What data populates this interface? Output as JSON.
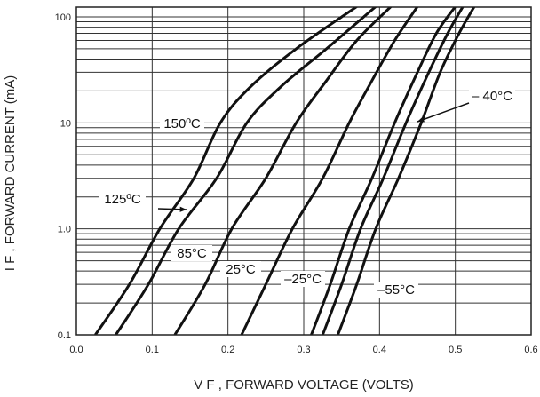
{
  "chart_data": {
    "type": "line",
    "title": "",
    "xlabel": "V F , FORWARD VOLTAGE (VOLTS)",
    "ylabel": "I F , FORWARD CURRENT (mA)",
    "xlim": [
      0.0,
      0.6
    ],
    "ylim": [
      0.1,
      120
    ],
    "yscale": "log",
    "grid": true,
    "x_ticks": [
      0.0,
      0.1,
      0.2,
      0.3,
      0.4,
      0.5,
      0.6
    ],
    "x_tick_labels": [
      "0.0",
      "0.1",
      "0.2",
      "0.3",
      "0.4",
      "0.5",
      "0.6"
    ],
    "y_ticks": [
      0.1,
      1.0,
      10,
      100
    ],
    "y_tick_labels": [
      "0.1",
      "1.0",
      "10",
      "100"
    ],
    "series": [
      {
        "name": "150ºC",
        "points": [
          [
            0.025,
            0.1
          ],
          [
            0.07,
            0.3
          ],
          [
            0.11,
            1.0
          ],
          [
            0.155,
            3.0
          ],
          [
            0.19,
            10
          ],
          [
            0.23,
            22
          ],
          [
            0.29,
            50
          ],
          [
            0.37,
            125
          ]
        ]
      },
      {
        "name": "125ºC",
        "points": [
          [
            0.052,
            0.1
          ],
          [
            0.095,
            0.3
          ],
          [
            0.135,
            1.0
          ],
          [
            0.185,
            3.0
          ],
          [
            0.225,
            10
          ],
          [
            0.27,
            22
          ],
          [
            0.33,
            50
          ],
          [
            0.395,
            125
          ]
        ]
      },
      {
        "name": "85°C",
        "points": [
          [
            0.13,
            0.1
          ],
          [
            0.17,
            0.3
          ],
          [
            0.205,
            1.0
          ],
          [
            0.25,
            3.0
          ],
          [
            0.29,
            10
          ],
          [
            0.33,
            25
          ],
          [
            0.37,
            60
          ],
          [
            0.415,
            125
          ]
        ]
      },
      {
        "name": "25°C",
        "points": [
          [
            0.218,
            0.1
          ],
          [
            0.25,
            0.3
          ],
          [
            0.285,
            1.0
          ],
          [
            0.325,
            3.0
          ],
          [
            0.36,
            10
          ],
          [
            0.39,
            25
          ],
          [
            0.42,
            60
          ],
          [
            0.45,
            125
          ]
        ]
      },
      {
        "name": "–25°C",
        "points": [
          [
            0.31,
            0.1
          ],
          [
            0.335,
            0.3
          ],
          [
            0.36,
            1.0
          ],
          [
            0.39,
            3.0
          ],
          [
            0.42,
            10
          ],
          [
            0.45,
            30
          ],
          [
            0.475,
            70
          ],
          [
            0.5,
            125
          ]
        ]
      },
      {
        "name": "–55°C",
        "points": [
          [
            0.325,
            0.1
          ],
          [
            0.35,
            0.3
          ],
          [
            0.375,
            1.0
          ],
          [
            0.405,
            3.0
          ],
          [
            0.435,
            10
          ],
          [
            0.465,
            30
          ],
          [
            0.49,
            70
          ],
          [
            0.51,
            125
          ]
        ]
      },
      {
        "name": "– 40°C",
        "points": [
          [
            0.345,
            0.1
          ],
          [
            0.37,
            0.3
          ],
          [
            0.395,
            1.0
          ],
          [
            0.425,
            3.0
          ],
          [
            0.455,
            10
          ],
          [
            0.48,
            30
          ],
          [
            0.505,
            70
          ],
          [
            0.525,
            125
          ]
        ]
      }
    ],
    "annotations": [
      {
        "text": "150ºC",
        "series": "150ºC"
      },
      {
        "text": "125ºC",
        "series": "125ºC",
        "arrow": true
      },
      {
        "text": "85°C",
        "series": "85°C"
      },
      {
        "text": "25°C",
        "series": "25°C"
      },
      {
        "text": "–25°C",
        "series": "–25°C"
      },
      {
        "text": "–55°C",
        "series": "–55°C"
      },
      {
        "text": "– 40°C",
        "series": "– 40°C",
        "arrow": true
      }
    ]
  }
}
